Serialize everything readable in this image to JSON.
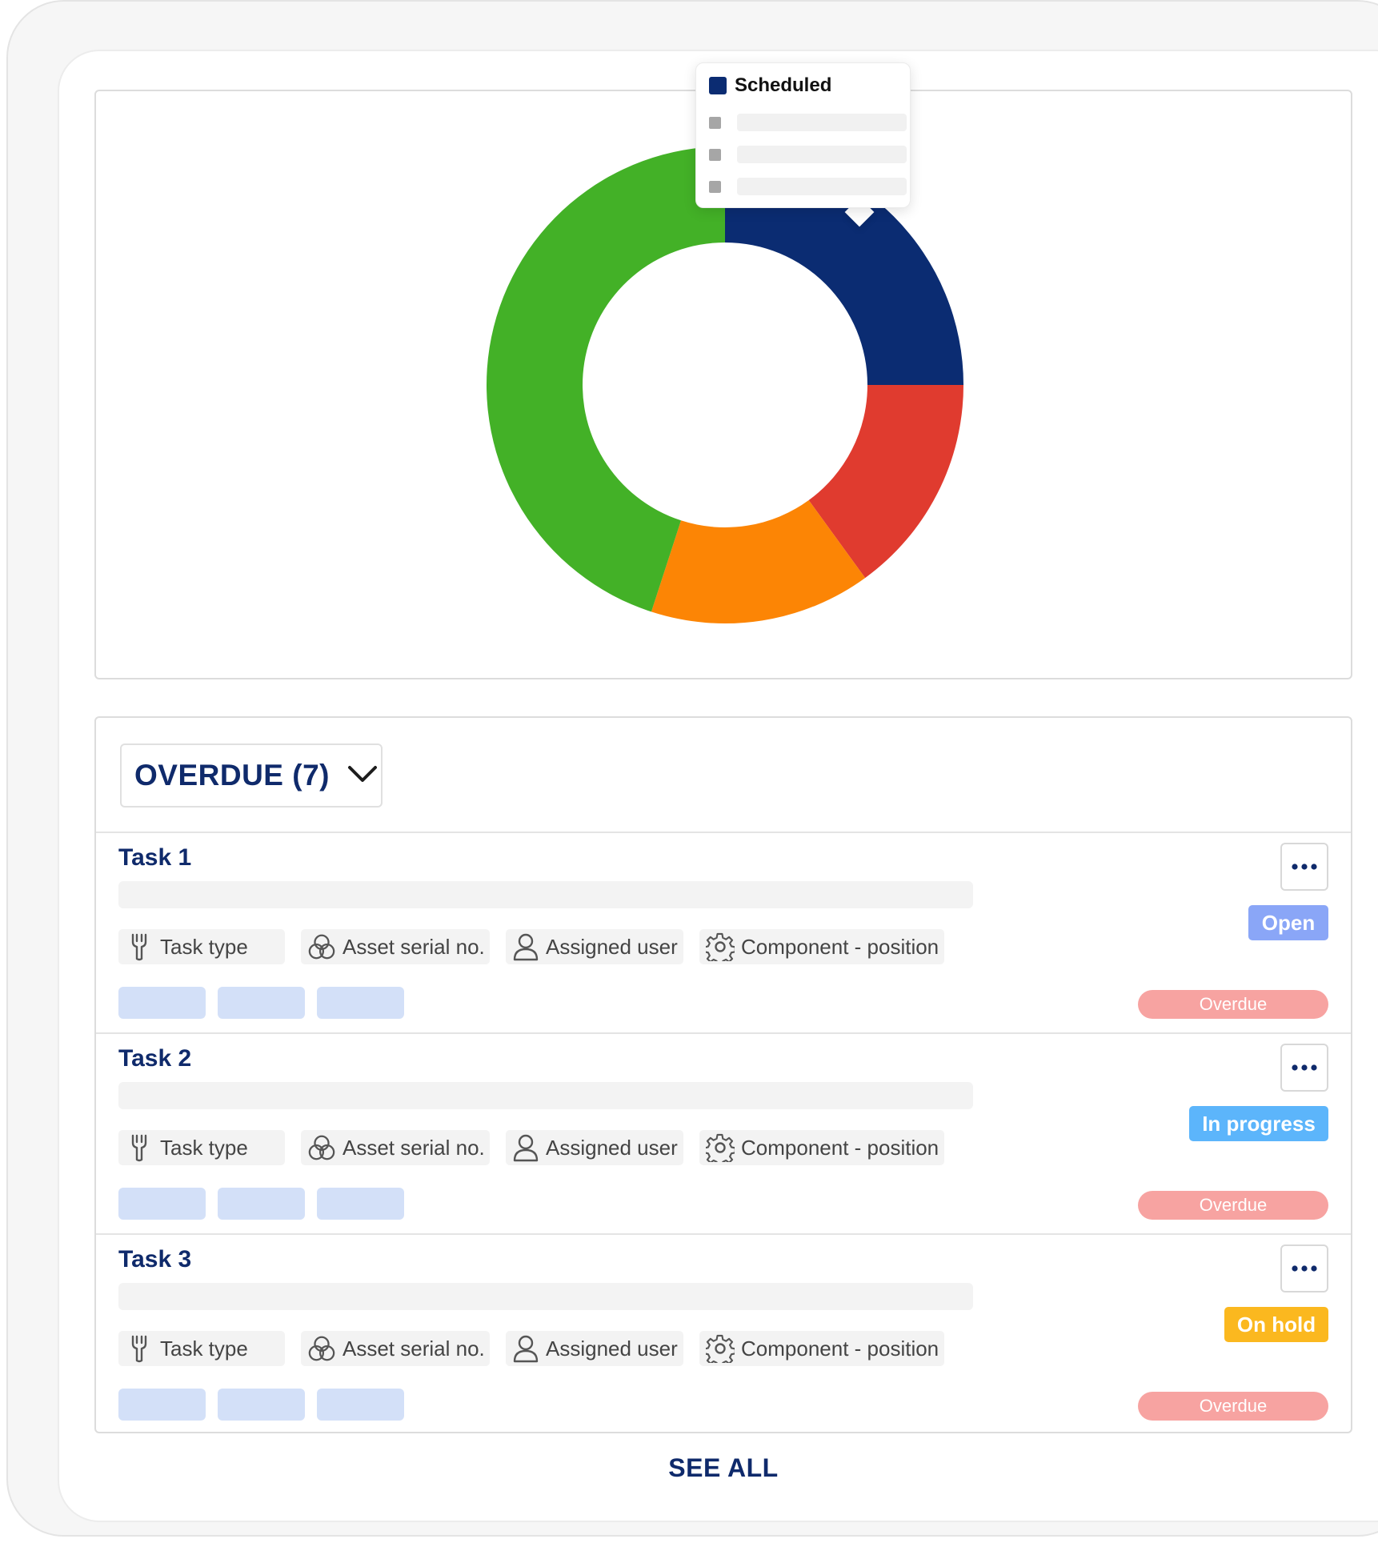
{
  "chart_data": {
    "type": "pie",
    "variant": "donut",
    "slices": [
      {
        "value": 25,
        "color": "#0b2c72"
      },
      {
        "value": 15,
        "color": "#e03b2f"
      },
      {
        "value": 15,
        "color": "#fc8505"
      },
      {
        "value": 45,
        "color": "#43b127"
      }
    ]
  },
  "tooltip": {
    "label": "Scheduled",
    "color": "#0b2c72"
  },
  "list": {
    "filter_label": "OVERDUE (7)",
    "tasks": [
      {
        "title": "Task 1",
        "chips": {
          "task_type": "Task type",
          "asset": "Asset serial no.",
          "user": "Assigned user",
          "component": "Component - position"
        },
        "status": "Open",
        "status_color": "#8aa6f7",
        "overdue": "Overdue"
      },
      {
        "title": "Task 2",
        "chips": {
          "task_type": "Task type",
          "asset": "Asset serial no.",
          "user": "Assigned user",
          "component": "Component - position"
        },
        "status": "In progress",
        "status_color": "#5cb5fb",
        "overdue": "Overdue"
      },
      {
        "title": "Task 3",
        "chips": {
          "task_type": "Task type",
          "asset": "Asset serial no.",
          "user": "Assigned user",
          "component": "Component - position"
        },
        "status": "On hold",
        "status_color": "#fbb81f",
        "overdue": "Overdue"
      }
    ]
  },
  "see_all_label": "SEE ALL"
}
